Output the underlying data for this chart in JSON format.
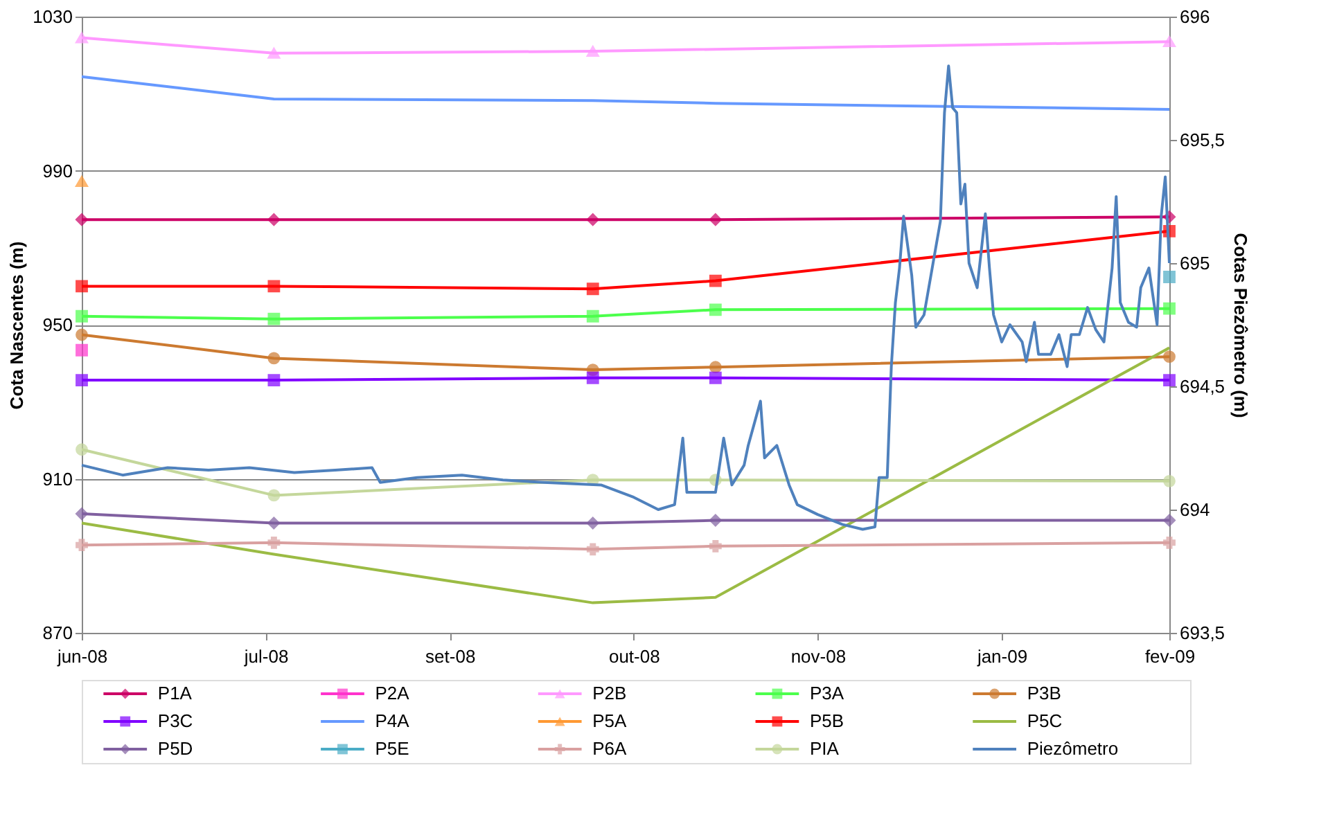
{
  "chart_data": {
    "type": "line",
    "ylabel": "Cota Nascentes (m)",
    "y2label": "Cotas Piezômetro (m)",
    "x": [
      "2008-06-03",
      "2008-07-20",
      "2008-10-06",
      "2008-11-05",
      "2009-02-24"
    ],
    "xlim": [
      "2008-06-03",
      "2009-02-24"
    ],
    "xticks": [
      {
        "value": "2008-06-03",
        "label": "jun-08"
      },
      {
        "value": "2008-07-18",
        "label": "jul-08"
      },
      {
        "value": "2008-09-01",
        "label": "set-08"
      },
      {
        "value": "2008-10-16",
        "label": "out-08"
      },
      {
        "value": "2008-11-30",
        "label": "nov-08"
      },
      {
        "value": "2009-01-14",
        "label": "jan-09"
      },
      {
        "value": "2009-02-24",
        "label": "fev-09"
      }
    ],
    "ylim": [
      870,
      1030
    ],
    "yticks": [
      870,
      910,
      950,
      990,
      1030
    ],
    "y2lim": [
      693.5,
      696
    ],
    "y2ticks": [
      {
        "value": 693.5,
        "label": "693,5"
      },
      694,
      {
        "value": 694.5,
        "label": "694,5"
      },
      695,
      {
        "value": 695.5,
        "label": "695,5"
      },
      696
    ],
    "grid": "y",
    "legend": "bottom",
    "line_style": "solid",
    "series": [
      {
        "name": "P1A",
        "color": "#cc0066",
        "marker": "diamond",
        "values": [
          977.3,
          977.3,
          977.3,
          977.3,
          978
        ]
      },
      {
        "name": "P2A",
        "color": "#ff33cc",
        "marker": "square",
        "x": [
          "2008-06-03"
        ],
        "values": [
          943.4
        ]
      },
      {
        "name": "P2B",
        "color": "#ff99ff",
        "marker": "triangle",
        "x": [
          "2008-06-03",
          "2008-07-20",
          "2008-10-06",
          "2009-02-24"
        ],
        "values": [
          1024.5,
          1020.5,
          1021,
          1023.5
        ]
      },
      {
        "name": "P3A",
        "color": "#4cff4c",
        "marker": "square",
        "values": [
          952.2,
          951.5,
          952.2,
          953.9,
          954.2
        ]
      },
      {
        "name": "P3B",
        "color": "#cc7a30",
        "marker": "circle",
        "values": [
          947.4,
          941.3,
          938.3,
          939,
          941.7
        ]
      },
      {
        "name": "P3C",
        "color": "#8000ff",
        "marker": "square",
        "values": [
          935.6,
          935.6,
          936.2,
          936.2,
          935.6
        ]
      },
      {
        "name": "P4A",
        "color": "#6699ff",
        "marker": "none",
        "values": [
          1014.4,
          1008.6,
          1008.2,
          1007.5,
          1005.9
        ]
      },
      {
        "name": "P5A",
        "color": "#ff9933",
        "marker": "triangle",
        "x": [
          "2008-06-03"
        ],
        "values": [
          987.2
        ]
      },
      {
        "name": "P5B",
        "color": "#ff0000",
        "marker": "square",
        "values": [
          960,
          960,
          959.3,
          961.4,
          974.3
        ]
      },
      {
        "name": "P5C",
        "color": "#9bbb44",
        "marker": "none",
        "values": [
          898.5,
          890.4,
          877.8,
          879.2,
          944
        ]
      },
      {
        "name": "P5D",
        "color": "#8060a0",
        "marker": "diamond",
        "values": [
          900.9,
          898.5,
          898.5,
          899.2,
          899.2
        ]
      },
      {
        "name": "P5E",
        "color": "#4bacc6",
        "marker": "square",
        "x": [
          "2009-02-24"
        ],
        "values": [
          962.4
        ]
      },
      {
        "name": "P6A",
        "color": "#d9a0a0",
        "marker": "cross",
        "values": [
          892.8,
          893.4,
          891.7,
          892.5,
          893.4
        ]
      },
      {
        "name": "PIA",
        "color": "#c4d79b",
        "marker": "circle",
        "values": [
          917.6,
          905.7,
          909.7,
          909.7,
          909.4
        ]
      },
      {
        "name": "Piezômetro",
        "color": "#4f81bd",
        "marker": "none",
        "axis": "y2",
        "x": [
          "2008-06-03",
          "2008-06-13",
          "2008-06-24",
          "2008-07-04",
          "2008-07-14",
          "2008-07-25",
          "2008-08-04",
          "2008-08-13",
          "2008-08-15",
          "2008-08-24",
          "2008-09-04",
          "2008-09-14",
          "2008-09-24",
          "2008-10-08",
          "2008-10-16",
          "2008-10-22",
          "2008-10-26",
          "2008-10-28",
          "2008-10-29",
          "2008-11-05",
          "2008-11-07",
          "2008-11-09",
          "2008-11-12",
          "2008-11-13",
          "2008-11-16",
          "2008-11-17",
          "2008-11-20",
          "2008-11-23",
          "2008-11-25",
          "2008-11-30",
          "2008-12-06",
          "2008-12-11",
          "2008-12-14",
          "2008-12-15",
          "2008-12-17",
          "2008-12-18",
          "2008-12-19",
          "2008-12-20",
          "2008-12-21",
          "2008-12-23",
          "2008-12-24",
          "2008-12-26",
          "2008-12-28",
          "2008-12-30",
          "2008-12-31",
          "2009-01-01",
          "2009-01-02",
          "2009-01-03",
          "2009-01-04",
          "2009-01-05",
          "2009-01-06",
          "2009-01-08",
          "2009-01-10",
          "2009-01-11",
          "2009-01-12",
          "2009-01-14",
          "2009-01-16",
          "2009-01-19",
          "2009-01-20",
          "2009-01-22",
          "2009-01-23",
          "2009-01-26",
          "2009-01-28",
          "2009-01-30",
          "2009-01-31",
          "2009-02-02",
          "2009-02-04",
          "2009-02-06",
          "2009-02-08",
          "2009-02-10",
          "2009-02-11",
          "2009-02-12",
          "2009-02-14",
          "2009-02-16",
          "2009-02-17",
          "2009-02-19",
          "2009-02-21",
          "2009-02-22",
          "2009-02-23",
          "2009-02-24"
        ],
        "values": [
          694.18,
          694.14,
          694.17,
          694.16,
          694.17,
          694.15,
          694.16,
          694.17,
          694.11,
          694.13,
          694.14,
          694.12,
          694.11,
          694.1,
          694.05,
          694.0,
          694.02,
          694.29,
          694.07,
          694.07,
          694.29,
          694.1,
          694.18,
          694.26,
          694.44,
          694.21,
          694.26,
          694.1,
          694.02,
          693.98,
          693.94,
          693.92,
          693.93,
          694.13,
          694.13,
          694.58,
          694.84,
          694.98,
          695.19,
          694.95,
          694.74,
          694.79,
          694.98,
          695.17,
          695.61,
          695.8,
          695.63,
          695.61,
          695.24,
          695.32,
          695.0,
          694.9,
          695.2,
          694.98,
          694.79,
          694.68,
          694.75,
          694.68,
          694.6,
          694.76,
          694.63,
          694.63,
          694.71,
          694.58,
          694.71,
          694.71,
          694.82,
          694.73,
          694.68,
          694.98,
          695.27,
          694.84,
          694.76,
          694.74,
          694.9,
          694.98,
          694.75,
          695.19,
          695.35,
          695.0
        ]
      }
    ]
  }
}
